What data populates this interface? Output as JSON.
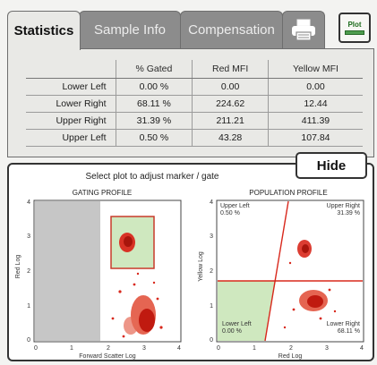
{
  "tabs": {
    "statistics": "Statistics",
    "sample_info": "Sample Info",
    "compensation": "Compensation",
    "plot_button": "Plot"
  },
  "stats_table": {
    "headers": [
      "% Gated",
      "Red MFI",
      "Yellow MFI"
    ],
    "rows": [
      {
        "name": "Lower Left",
        "gated": "0.00 %",
        "red": "0.00",
        "yellow": "0.00"
      },
      {
        "name": "Lower Right",
        "gated": "68.11 %",
        "red": "224.62",
        "yellow": "12.44"
      },
      {
        "name": "Upper Right",
        "gated": "31.39 %",
        "red": "211.21",
        "yellow": "411.39"
      },
      {
        "name": "Upper Left",
        "gated": "0.50 %",
        "red": "43.28",
        "yellow": "107.84"
      }
    ]
  },
  "plot_area": {
    "hint": "Select plot to adjust marker / gate",
    "hide_label": "Hide"
  },
  "gating_profile": {
    "title": "GATING PROFILE",
    "xlabel": "Forward Scatter Log",
    "ylabel": "Red Log",
    "ticks": [
      "0",
      "1",
      "2",
      "3",
      "4"
    ]
  },
  "population_profile": {
    "title": "POPULATION PROFILE",
    "xlabel": "Red Log",
    "ylabel": "Yellow Log",
    "ticks": [
      "0",
      "1",
      "2",
      "3",
      "4"
    ],
    "quadrants": {
      "upper_left": {
        "label": "Upper Left",
        "value": "0.50 %"
      },
      "upper_right": {
        "label": "Upper Right",
        "value": "31.39 %"
      },
      "lower_left": {
        "label": "Lower Left",
        "value": "0.00 %"
      },
      "lower_right": {
        "label": "Lower Right",
        "value": "68.11 %"
      }
    }
  },
  "colors": {
    "accent_red": "#d8281c",
    "gate_fill": "#c9e6b8",
    "tab_inactive": "#8c8c8c",
    "plot_green": "#4e9c4e"
  }
}
